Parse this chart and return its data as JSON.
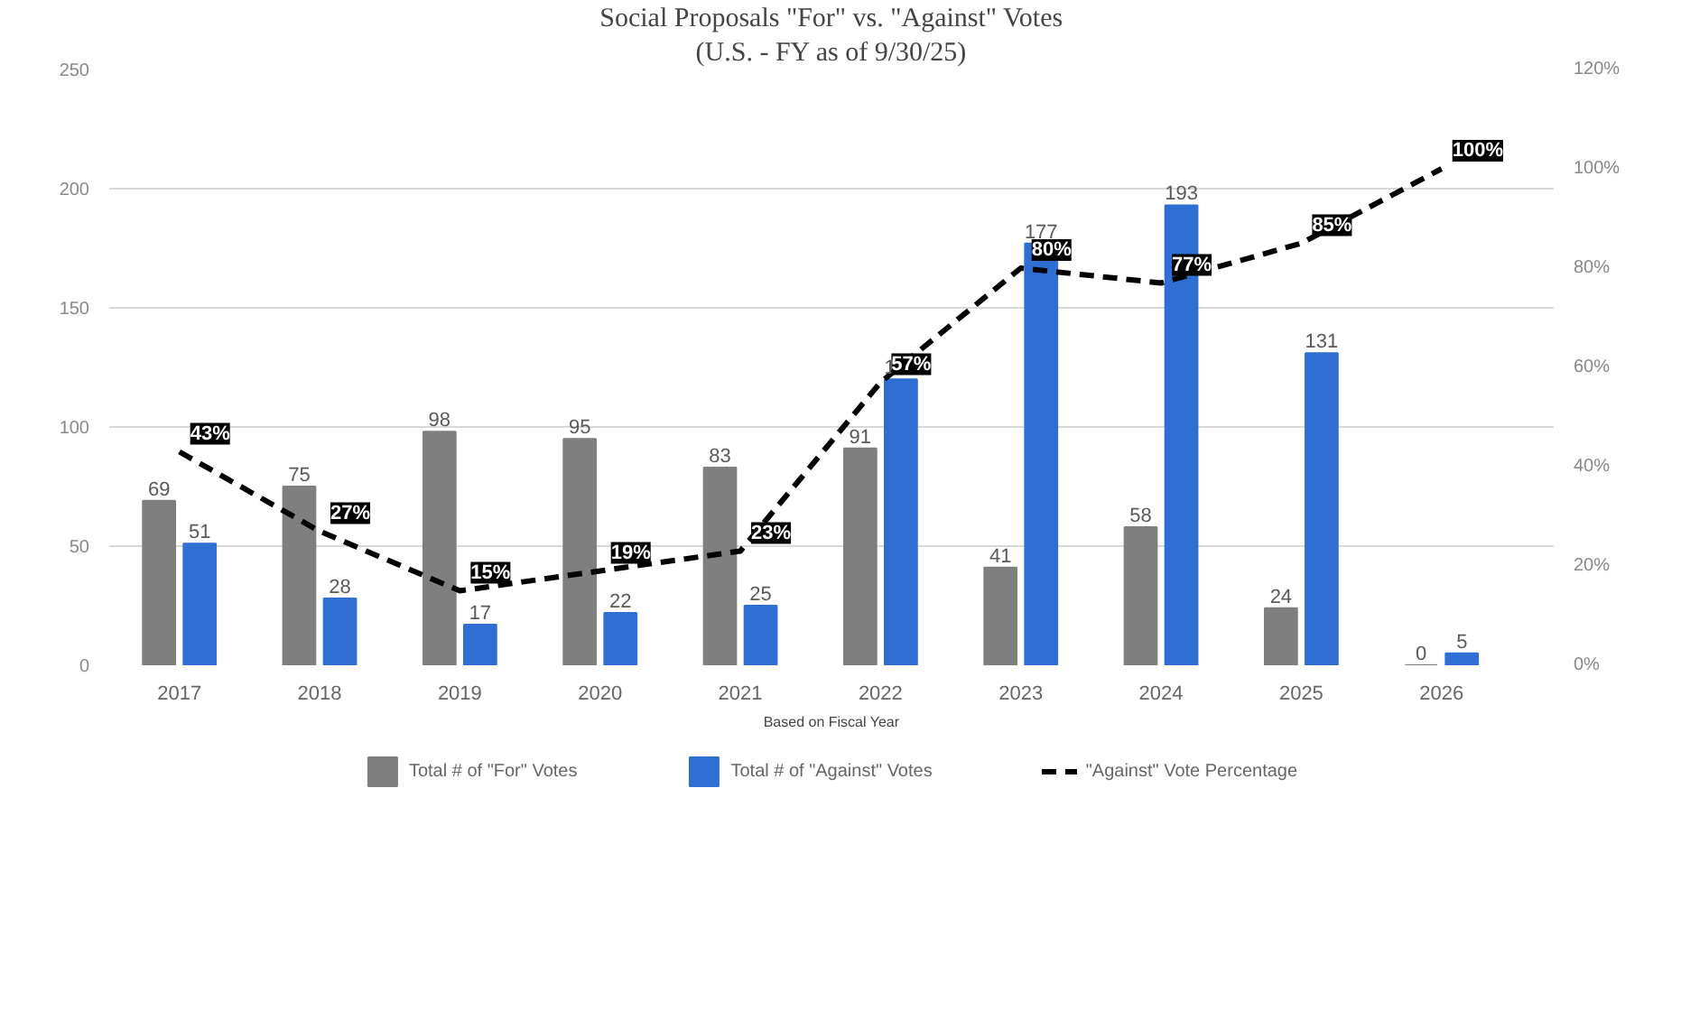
{
  "chart_data": {
    "type": "bar",
    "title": "Social Proposals \"For\" vs. \"Against\" Votes",
    "subtitle": "(U.S. - FY as of 9/30/25)",
    "xlabel": "Based on Fiscal Year",
    "categories": [
      "2017",
      "2018",
      "2019",
      "2020",
      "2021",
      "2022",
      "2023",
      "2024",
      "2025",
      "2026"
    ],
    "series": [
      {
        "name": "Total # of \"For\" Votes",
        "color": "#7f7f7f",
        "values": [
          69,
          75,
          98,
          95,
          83,
          91,
          41,
          58,
          24,
          0
        ]
      },
      {
        "name": "Total # of \"Against\" Votes",
        "color": "#2f6fd4",
        "values": [
          51,
          28,
          17,
          22,
          25,
          120,
          177,
          193,
          131,
          5
        ]
      },
      {
        "name": "\"Against\" Vote Percentage",
        "type": "line",
        "axis": "y2",
        "color": "#000000",
        "line_style": "dashed",
        "values": [
          43,
          27,
          15,
          19,
          23,
          57,
          80,
          77,
          85,
          100
        ],
        "value_labels": [
          "43%",
          "27%",
          "15%",
          "19%",
          "23%",
          "57%",
          "80%",
          "77%",
          "85%",
          "100%"
        ]
      }
    ],
    "ylim": [
      0,
      250
    ],
    "yticks": [
      0,
      50,
      100,
      150,
      200,
      250
    ],
    "y2lim": [
      0,
      120
    ],
    "y2ticks": [
      {
        "value": 0,
        "label": "0%"
      },
      {
        "value": 20,
        "label": "20%"
      },
      {
        "value": 40,
        "label": "40%"
      },
      {
        "value": 60,
        "label": "60%"
      },
      {
        "value": 80,
        "label": "80%"
      },
      {
        "value": 100,
        "label": "100%"
      },
      {
        "value": 120,
        "label": "120%"
      }
    ],
    "grid": "y",
    "legend": "bottom",
    "data_labels": true
  }
}
